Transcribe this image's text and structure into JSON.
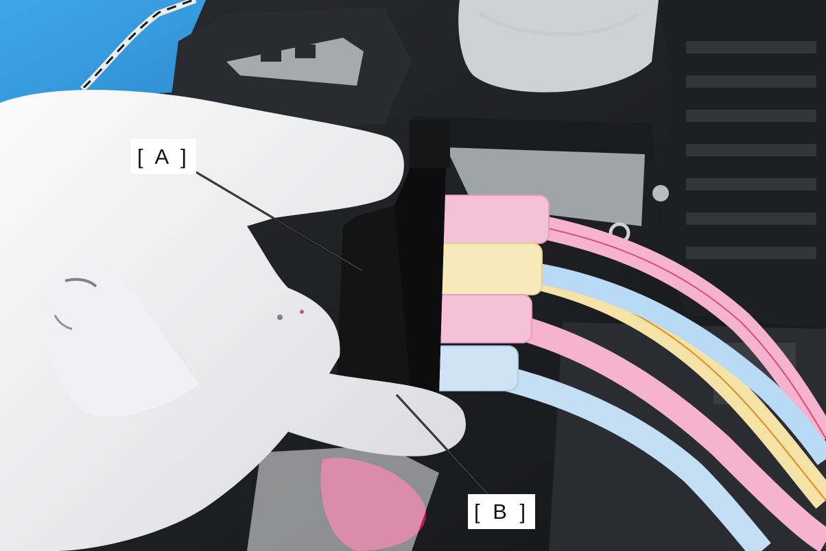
{
  "callouts": {
    "a": "[ A ]",
    "b": "[ B ]"
  },
  "colors": {
    "background_blue": "#3aa3e6",
    "glove": "#f3f3f3",
    "connector": "#141414",
    "tube_pink": "#f6b3cf",
    "tube_yellow": "#f4e2a6",
    "tube_blue": "#b9daf4",
    "ink_magenta": "#c4155a"
  }
}
